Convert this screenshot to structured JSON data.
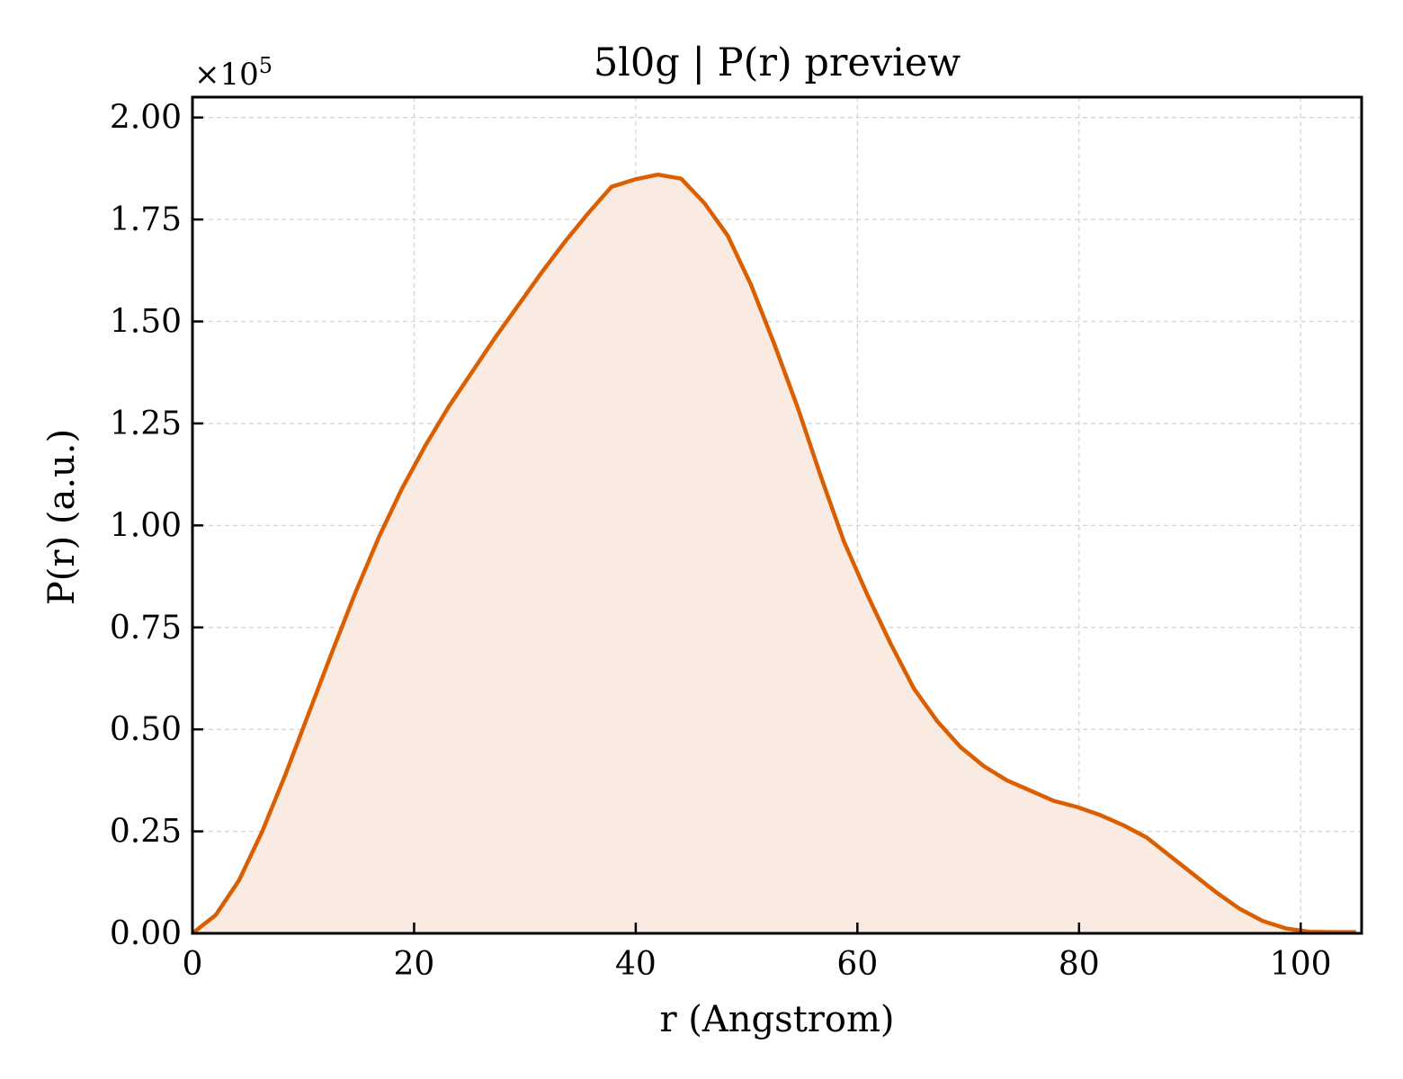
{
  "chart_data": {
    "type": "area",
    "title": "5l0g | P(r) preview",
    "xlabel": "r (Angstrom)",
    "ylabel": "P(r) (a.u.)",
    "y_multiplier_label": "×10",
    "y_multiplier_exponent": "5",
    "xlim": [
      0,
      105.5
    ],
    "ylim": [
      0,
      2.05
    ],
    "x_ticks": [
      0,
      20,
      40,
      60,
      80,
      100
    ],
    "x_tick_labels": [
      "0",
      "20",
      "40",
      "60",
      "80",
      "100"
    ],
    "y_ticks": [
      0,
      0.25,
      0.5,
      0.75,
      1.0,
      1.25,
      1.5,
      1.75,
      2.0
    ],
    "y_tick_labels": [
      "0.00",
      "0.25",
      "0.50",
      "0.75",
      "1.00",
      "1.25",
      "1.50",
      "1.75",
      "2.00"
    ],
    "grid": true,
    "line_color": "#d95f02",
    "fill_color": "#f9ebe1",
    "series": [
      {
        "x": [
          0,
          2.1,
          4.2,
          6.3,
          8.4,
          10.5,
          12.6,
          14.7,
          16.8,
          18.9,
          21.0,
          23.1,
          25.2,
          27.3,
          29.4,
          31.5,
          33.6,
          35.7,
          37.8,
          39.9,
          42.0,
          44.1,
          46.2,
          48.3,
          50.4,
          52.5,
          54.6,
          56.7,
          58.8,
          60.9,
          63.0,
          65.1,
          67.2,
          69.3,
          71.4,
          73.5,
          75.6,
          77.7,
          79.8,
          81.9,
          84.0,
          86.1,
          88.2,
          90.3,
          92.4,
          94.5,
          96.6,
          98.7,
          100.8,
          102.9,
          105.0
        ],
        "y": [
          0.0,
          0.045,
          0.13,
          0.25,
          0.39,
          0.54,
          0.69,
          0.835,
          0.97,
          1.09,
          1.195,
          1.29,
          1.375,
          1.46,
          1.54,
          1.62,
          1.695,
          1.765,
          1.83,
          1.848,
          1.86,
          1.85,
          1.79,
          1.71,
          1.59,
          1.445,
          1.29,
          1.12,
          0.96,
          0.83,
          0.71,
          0.6,
          0.52,
          0.457,
          0.41,
          0.375,
          0.35,
          0.325,
          0.31,
          0.29,
          0.265,
          0.235,
          0.19,
          0.145,
          0.1,
          0.06,
          0.03,
          0.012,
          0.004,
          0.003,
          0.003
        ]
      }
    ]
  }
}
